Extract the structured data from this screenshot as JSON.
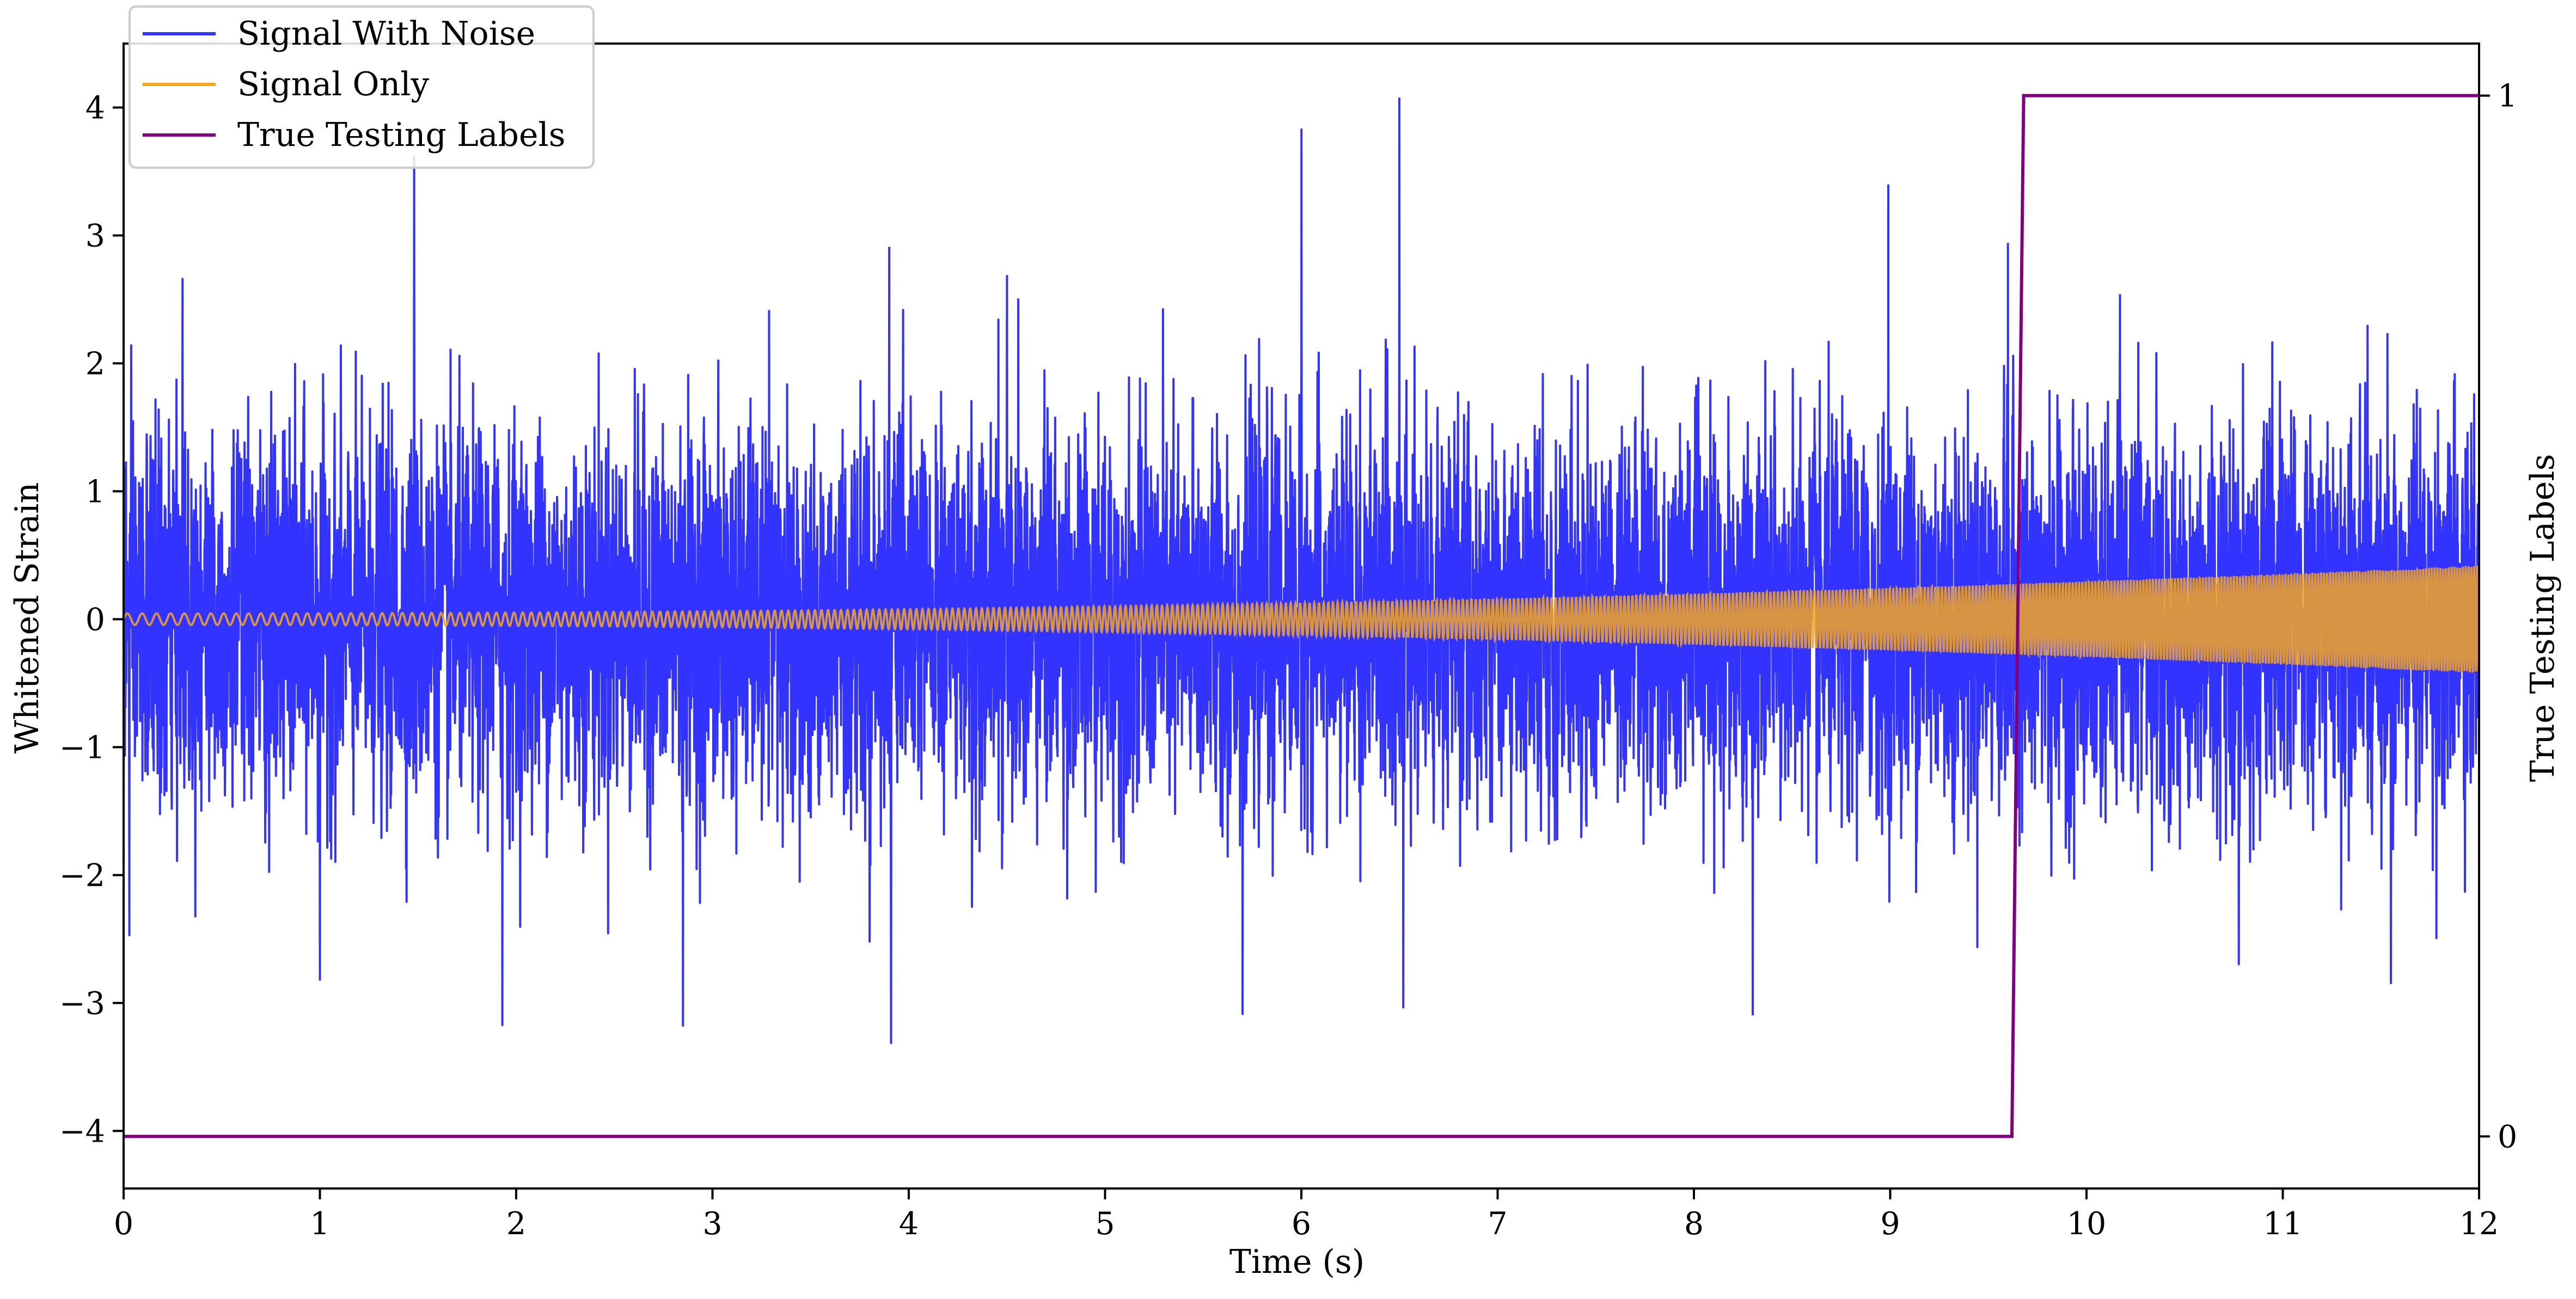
{
  "chart_data": {
    "type": "line",
    "title": "",
    "xlabel": "Time (s)",
    "ylabel": "Whitened Strain",
    "y2label": "True Testing Labels",
    "xlim": [
      0,
      12
    ],
    "ylim": [
      -4.45,
      4.5
    ],
    "y2lim": [
      -0.05,
      1.05
    ],
    "x_ticks": [
      0,
      1,
      2,
      3,
      4,
      5,
      6,
      7,
      8,
      9,
      10,
      11,
      12
    ],
    "x_tick_labels": [
      "0",
      "1",
      "2",
      "3",
      "4",
      "5",
      "6",
      "7",
      "8",
      "9",
      "10",
      "11",
      "12"
    ],
    "y_ticks": [
      -4,
      -3,
      -2,
      -1,
      0,
      1,
      2,
      3,
      4
    ],
    "y_tick_labels": [
      "−4",
      "−3",
      "−2",
      "−1",
      "0",
      "1",
      "2",
      "3",
      "4"
    ],
    "y2_ticks": [
      0,
      1
    ],
    "y2_tick_labels": [
      "0",
      "1"
    ],
    "grid": false,
    "legend_position": "top-left",
    "series": [
      {
        "name": "Signal With Noise",
        "color": "#3333ff",
        "axis": "left",
        "description_note": "",
        "noise_std": 0.72,
        "peaks": [
          {
            "x": 1.48,
            "y": 3.6
          },
          {
            "x": 3.9,
            "y": 2.97
          },
          {
            "x": 6.0,
            "y": 3.85
          },
          {
            "x": 6.5,
            "y": 4.2
          },
          {
            "x": 8.99,
            "y": 3.6
          },
          {
            "x": 9.6,
            "y": 3.17
          },
          {
            "x": 0.3,
            "y": 2.63
          },
          {
            "x": 4.5,
            "y": 2.74
          },
          {
            "x": 10.17,
            "y": 2.74
          },
          {
            "x": 3.91,
            "y": -3.37
          },
          {
            "x": 2.85,
            "y": -3.23
          },
          {
            "x": 1.93,
            "y": -3.15
          },
          {
            "x": 5.7,
            "y": -3.2
          },
          {
            "x": 8.3,
            "y": -3.1
          },
          {
            "x": 0.03,
            "y": -2.5
          },
          {
            "x": 11.55,
            "y": -2.9
          },
          {
            "x": 1.0,
            "y": -2.85
          },
          {
            "x": 6.52,
            "y": -2.9
          }
        ]
      },
      {
        "name": "Signal Only",
        "color": "#f5a623",
        "axis": "left",
        "amplitude_start": 0.045,
        "amplitude_end": 0.42,
        "frequency_start": 13,
        "frequency_end": 70
      },
      {
        "name": "True Testing Labels",
        "color": "#800080",
        "axis": "right",
        "x": [
          0,
          9.62,
          9.68,
          12
        ],
        "y": [
          0,
          0,
          1,
          1
        ]
      }
    ]
  }
}
